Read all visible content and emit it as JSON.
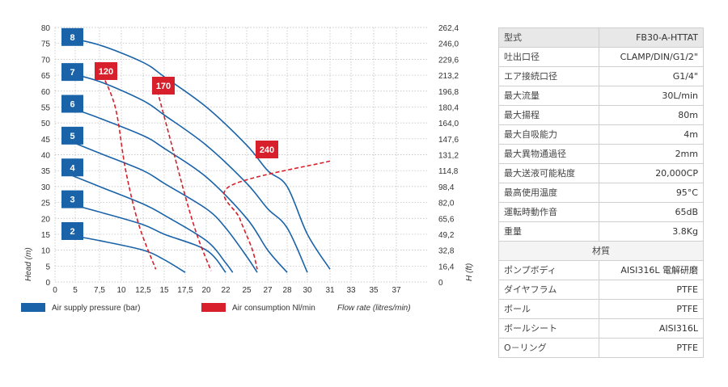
{
  "chart_data": {
    "type": "line",
    "x_ticks": [
      "0",
      "5",
      "7,5",
      "10",
      "12,5",
      "15",
      "17,5",
      "20",
      "22",
      "25",
      "27",
      "28",
      "30",
      "31",
      "33",
      "35",
      "37"
    ],
    "y_left_ticks": [
      "0",
      "5",
      "10",
      "15",
      "20",
      "25",
      "30",
      "35",
      "40",
      "45",
      "50",
      "55",
      "60",
      "65",
      "70",
      "75",
      "80"
    ],
    "y_right_ticks": [
      "0",
      "16,4",
      "32,8",
      "49,2",
      "65,6",
      "82,0",
      "98,4",
      "114,8",
      "131,2",
      "147,6",
      "164,0",
      "180,4",
      "196,8",
      "213,2",
      "229,6",
      "246,0",
      "262,4"
    ],
    "ylabel_left": "Head (m)",
    "ylabel_right": "H (ft)",
    "xlabel": "Flow rate (litres/min)",
    "xlim": [
      0,
      37
    ],
    "ylim": [
      0,
      80
    ],
    "grid": true,
    "series": [
      {
        "name": "8",
        "kind": "pressure",
        "points": [
          [
            2.2,
            77
          ],
          [
            7.5,
            74.5
          ],
          [
            12.5,
            69
          ],
          [
            15,
            64.5
          ],
          [
            20,
            55
          ],
          [
            25,
            43
          ],
          [
            27,
            35
          ],
          [
            28,
            30
          ],
          [
            30,
            15
          ],
          [
            31,
            4
          ]
        ]
      },
      {
        "name": "7",
        "kind": "pressure",
        "points": [
          [
            2.2,
            66
          ],
          [
            7.5,
            63
          ],
          [
            12.5,
            57
          ],
          [
            15,
            52.5
          ],
          [
            20,
            43
          ],
          [
            25,
            31
          ],
          [
            27,
            23
          ],
          [
            28,
            17
          ],
          [
            30,
            3
          ]
        ]
      },
      {
        "name": "6",
        "kind": "pressure",
        "points": [
          [
            2.2,
            55.5
          ],
          [
            7.5,
            51.5
          ],
          [
            12.5,
            46
          ],
          [
            15,
            42
          ],
          [
            20,
            33
          ],
          [
            25,
            20
          ],
          [
            27,
            10
          ],
          [
            28,
            3
          ]
        ]
      },
      {
        "name": "5",
        "kind": "pressure",
        "points": [
          [
            2.2,
            45
          ],
          [
            7.5,
            40.5
          ],
          [
            12.5,
            35
          ],
          [
            15,
            31
          ],
          [
            20,
            23
          ],
          [
            22,
            17
          ],
          [
            25,
            8
          ],
          [
            26,
            3
          ]
        ]
      },
      {
        "name": "4",
        "kind": "pressure",
        "points": [
          [
            2.2,
            34.5
          ],
          [
            7.5,
            30
          ],
          [
            12.5,
            24.5
          ],
          [
            15,
            21
          ],
          [
            20,
            13
          ],
          [
            22,
            6
          ],
          [
            23,
            3
          ]
        ]
      },
      {
        "name": "3",
        "kind": "pressure",
        "points": [
          [
            2.2,
            25
          ],
          [
            7.5,
            22
          ],
          [
            12.5,
            18
          ],
          [
            15,
            15
          ],
          [
            20,
            10
          ],
          [
            22,
            3
          ]
        ]
      },
      {
        "name": "2",
        "kind": "pressure",
        "points": [
          [
            2.2,
            15
          ],
          [
            7.5,
            13
          ],
          [
            12.5,
            10
          ],
          [
            15,
            7
          ],
          [
            17.5,
            3
          ]
        ]
      }
    ],
    "consumption": [
      {
        "name": "120",
        "points": [
          [
            7.5,
            67
          ],
          [
            9.3,
            55
          ],
          [
            10.5,
            35
          ],
          [
            12,
            18
          ],
          [
            14,
            4
          ]
        ]
      },
      {
        "name": "170",
        "points": [
          [
            14,
            62
          ],
          [
            15.7,
            45
          ],
          [
            17.5,
            27
          ],
          [
            19,
            14
          ],
          [
            20.5,
            3.5
          ]
        ]
      },
      {
        "name": "240",
        "points": [
          [
            31,
            38
          ],
          [
            22.5,
            30
          ],
          [
            24,
            20
          ],
          [
            25.5,
            10.5
          ],
          [
            26,
            4
          ]
        ]
      }
    ],
    "pressure_badges": [
      "8",
      "7",
      "6",
      "5",
      "4",
      "3",
      "2"
    ],
    "consumption_badges": [
      "120",
      "170",
      "240"
    ],
    "legend": {
      "pressure": "Air supply pressure (bar)",
      "consumption": "Air consumption Nl/min"
    },
    "colors": {
      "pressure": "#1a63a8",
      "consumption": "#d7202b",
      "grid": "#b7b7b7"
    }
  },
  "spec_table": {
    "rows": [
      {
        "label": "型式",
        "value": "FB30-A-HTTAT"
      },
      {
        "label": "吐出口径",
        "value": "CLAMP/DIN/G1/2\""
      },
      {
        "label": "エア接続口径",
        "value": "G1/4\""
      },
      {
        "label": "最大流量",
        "value": "30L/min"
      },
      {
        "label": "最大揚程",
        "value": "80m"
      },
      {
        "label": "最大自吸能力",
        "value": "4m"
      },
      {
        "label": "最大異物通過径",
        "value": "2mm"
      },
      {
        "label": "最大送液可能粘度",
        "value": "20,000CP"
      },
      {
        "label": "最高使用温度",
        "value": "95°C"
      },
      {
        "label": "運転時動作音",
        "value": "65dB"
      },
      {
        "label": "重量",
        "value": "3.8Kg"
      }
    ],
    "material_header": "材質",
    "material_rows": [
      {
        "label": "ポンプボディ",
        "value": "AISI316L 電解研磨"
      },
      {
        "label": "ダイヤフラム",
        "value": "PTFE"
      },
      {
        "label": "ボール",
        "value": "PTFE"
      },
      {
        "label": "ボールシート",
        "value": "AISI316L"
      },
      {
        "label": "O－リング",
        "value": "PTFE"
      }
    ]
  }
}
